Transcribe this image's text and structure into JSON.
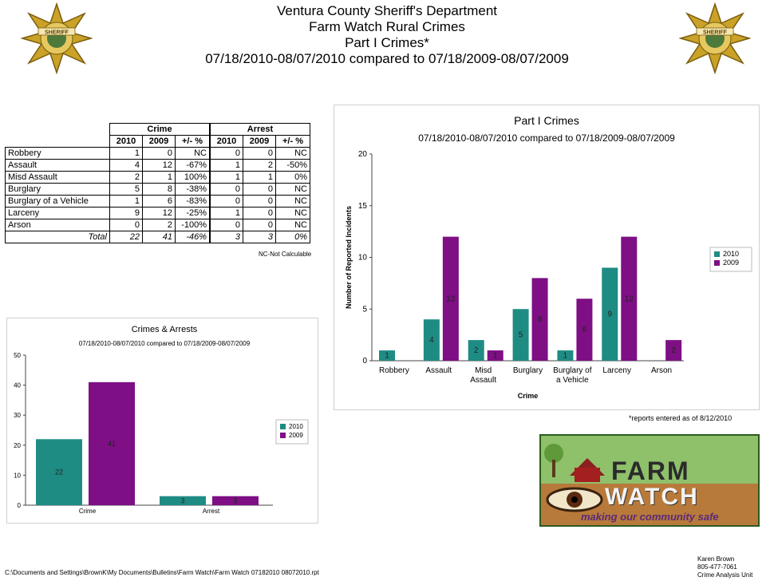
{
  "header": {
    "line1": "Ventura County Sheriff's Department",
    "line2": "Farm Watch Rural Crimes",
    "line3": "Part I Crimes*",
    "line4": "07/18/2010-08/07/2010 compared to 07/18/2009-08/07/2009"
  },
  "badge": {
    "text": "SHERIFF",
    "subtext": "VENTURA COUNTY",
    "color": "#c9a227"
  },
  "colors": {
    "y2010": "#1f8c84",
    "y2009": "#7e0f84"
  },
  "table": {
    "group_crime": "Crime",
    "group_arrest": "Arrest",
    "sub": [
      "2010",
      "2009",
      "+/- %",
      "2010",
      "2009",
      "+/- %"
    ],
    "rows": [
      {
        "label": "Robbery",
        "c2010": "1",
        "c2009": "0",
        "cpct": "NC",
        "a2010": "0",
        "a2009": "0",
        "apct": "NC"
      },
      {
        "label": "Assault",
        "c2010": "4",
        "c2009": "12",
        "cpct": "-67%",
        "a2010": "1",
        "a2009": "2",
        "apct": "-50%"
      },
      {
        "label": "Misd  Assault",
        "c2010": "2",
        "c2009": "1",
        "cpct": "100%",
        "a2010": "1",
        "a2009": "1",
        "apct": "0%"
      },
      {
        "label": "Burglary",
        "c2010": "5",
        "c2009": "8",
        "cpct": "-38%",
        "a2010": "0",
        "a2009": "0",
        "apct": "NC"
      },
      {
        "label": "Burglary of a Vehicle",
        "c2010": "1",
        "c2009": "6",
        "cpct": "-83%",
        "a2010": "0",
        "a2009": "0",
        "apct": "NC"
      },
      {
        "label": "Larceny",
        "c2010": "9",
        "c2009": "12",
        "cpct": "-25%",
        "a2010": "1",
        "a2009": "0",
        "apct": "NC"
      },
      {
        "label": "Arson",
        "c2010": "0",
        "c2009": "2",
        "cpct": "-100%",
        "a2010": "0",
        "a2009": "0",
        "apct": "NC"
      }
    ],
    "total": {
      "label": "Total",
      "c2010": "22",
      "c2009": "41",
      "cpct": "-46%",
      "a2010": "3",
      "a2009": "3",
      "apct": "0%"
    },
    "note": "NC-Not Calculable"
  },
  "chart_data": [
    {
      "type": "bar",
      "title": "Part I Crimes",
      "subtitle": "07/18/2010-08/07/2010 compared to 07/18/2009-08/07/2009",
      "xlabel": "Crime",
      "ylabel": "Number of Reported Incidents",
      "ylim": [
        0,
        20
      ],
      "yticks": [
        0,
        5,
        10,
        15,
        20
      ],
      "categories": [
        [
          "Robbery"
        ],
        [
          "Assault"
        ],
        [
          "Misd",
          "Assault"
        ],
        [
          "Burglary"
        ],
        [
          "Burglary of",
          "a Vehicle"
        ],
        [
          "Larceny"
        ],
        [
          "Arson"
        ]
      ],
      "series": [
        {
          "name": "2010",
          "values": [
            1,
            4,
            2,
            5,
            1,
            9,
            0
          ],
          "color": "#1f8c84"
        },
        {
          "name": "2009",
          "values": [
            0,
            12,
            1,
            8,
            6,
            12,
            2
          ],
          "color": "#7e0f84"
        }
      ],
      "legend": "right",
      "grid": false
    },
    {
      "type": "bar",
      "title": "Crimes & Arrests",
      "subtitle": "07/18/2010-08/07/2010 compared to 07/18/2009-08/07/2009",
      "xlabel": "",
      "ylabel": "",
      "ylim": [
        0,
        50
      ],
      "yticks": [
        0,
        10,
        20,
        30,
        40,
        50
      ],
      "categories": [
        [
          "Crime"
        ],
        [
          "Arrest"
        ]
      ],
      "series": [
        {
          "name": "2010",
          "values": [
            22,
            3
          ],
          "color": "#1f8c84"
        },
        {
          "name": "2009",
          "values": [
            41,
            3
          ],
          "color": "#7e0f84"
        }
      ],
      "legend": "right",
      "grid": false
    }
  ],
  "footnote": "*reports entered as of 8/12/2010",
  "logo": {
    "line1": "FARM",
    "line2": "WATCH",
    "line3": "making our community safe"
  },
  "footer": {
    "path": "C:\\Documents and Settings\\BrownK\\My Documents\\Bulletins\\Farm Watch\\Farm Watch 07182010 08072010.rpt",
    "name": "Karen Brown",
    "phone": "805-477-7061",
    "unit": "Crime Analysis Unit"
  }
}
